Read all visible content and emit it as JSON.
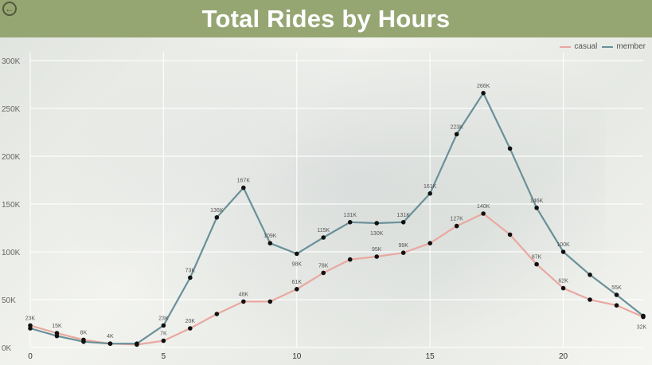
{
  "header": {
    "title": "Total Rides by Hours",
    "back_icon": "arrow-left-circle-icon"
  },
  "colors": {
    "header_bg": "#96a673",
    "casual": "#e9a8a0",
    "member": "#6a9098",
    "marker": "#111111"
  },
  "chart_data": {
    "type": "line",
    "title": "Total Rides by Hours",
    "xlabel": "",
    "ylabel": "",
    "x": [
      0,
      1,
      2,
      3,
      4,
      5,
      6,
      7,
      8,
      9,
      10,
      11,
      12,
      13,
      14,
      15,
      16,
      17,
      18,
      19,
      20,
      21,
      22,
      23
    ],
    "xticks": [
      "0",
      "5",
      "10",
      "15",
      "20"
    ],
    "xtick_values": [
      0,
      5,
      10,
      15,
      20
    ],
    "yticks": [
      "0K",
      "50K",
      "100K",
      "150K",
      "200K",
      "250K",
      "300K"
    ],
    "ytick_values": [
      0,
      50000,
      100000,
      150000,
      200000,
      250000,
      300000
    ],
    "ylim": [
      0,
      300000
    ],
    "xlim": [
      0,
      23
    ],
    "grid": true,
    "legend_position": "top-right",
    "series": [
      {
        "name": "casual",
        "values": [
          23000,
          15000,
          8000,
          4000,
          3000,
          7000,
          20000,
          35000,
          48000,
          48000,
          61000,
          78000,
          92000,
          95000,
          99000,
          109000,
          127000,
          140000,
          118000,
          87000,
          62000,
          50000,
          44000,
          32000
        ],
        "labels": [
          "23K",
          "15K",
          "8K",
          "",
          "",
          "7K",
          "20K",
          "",
          "48K",
          "",
          "61K",
          "78K",
          "",
          "95K",
          "99K",
          "",
          "127K",
          "140K",
          "",
          "87K",
          "62K",
          "",
          "",
          "32K"
        ]
      },
      {
        "name": "member",
        "values": [
          20000,
          12000,
          6000,
          4000,
          4000,
          23000,
          73000,
          136000,
          167000,
          109000,
          98000,
          115000,
          131000,
          130000,
          131000,
          161000,
          223000,
          266000,
          208000,
          146000,
          100000,
          76000,
          55000,
          33000
        ],
        "labels": [
          "",
          "",
          "",
          "4K",
          "",
          "23K",
          "73K",
          "136K",
          "167K",
          "109K",
          "98K",
          "115K",
          "131K",
          "130K",
          "131K",
          "161K",
          "223K",
          "266K",
          "",
          "146K",
          "100K",
          "",
          "55K",
          ""
        ]
      }
    ]
  }
}
